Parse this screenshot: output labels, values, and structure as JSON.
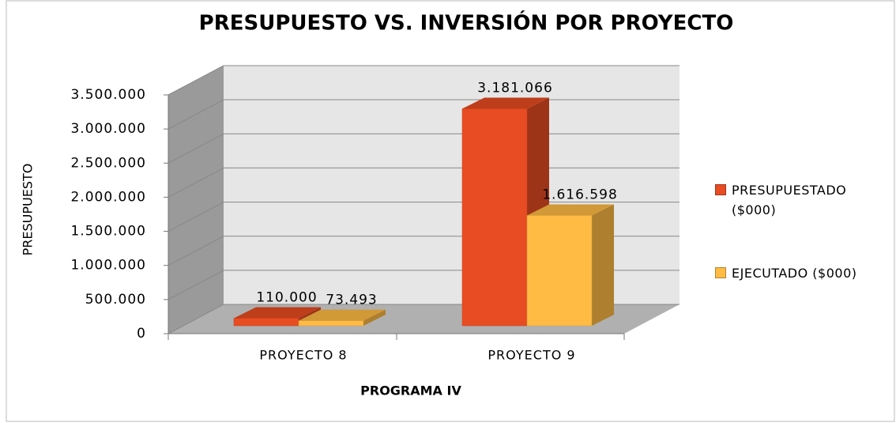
{
  "chart_data": {
    "type": "bar3d",
    "title": "PRESUPUESTO VS. INVERSIÓN POR PROYECTO",
    "x_label": "PROGRAMA IV",
    "y_label": "PRESUPUESTO",
    "categories": [
      "PROYECTO 8",
      "PROYECTO 9"
    ],
    "series": [
      {
        "name": "PRESUPUESTADO ($000)",
        "color": "#e84c22",
        "values": [
          110000,
          3181066
        ],
        "value_labels": [
          "110.000",
          "3.181.066"
        ]
      },
      {
        "name": "EJECUTADO ($000)",
        "color": "#ffbb44",
        "values": [
          73493,
          1616598
        ],
        "value_labels": [
          "73.493",
          "1.616.598"
        ]
      }
    ],
    "ylim": [
      0,
      3500000
    ],
    "yticks": [
      0,
      {
        "value": 500000,
        "label": "500.000"
      },
      {
        "value": 1000000,
        "label": "1.000.000"
      },
      {
        "value": 1500000,
        "label": "1.500.000"
      },
      {
        "value": 2000000,
        "label": "2.000.000"
      },
      {
        "value": 2500000,
        "label": "2.500.000"
      },
      {
        "value": 3000000,
        "label": "3.000.000"
      },
      {
        "value": 3500000,
        "label": "3.500.000"
      }
    ],
    "grid": true,
    "legend": "right"
  }
}
